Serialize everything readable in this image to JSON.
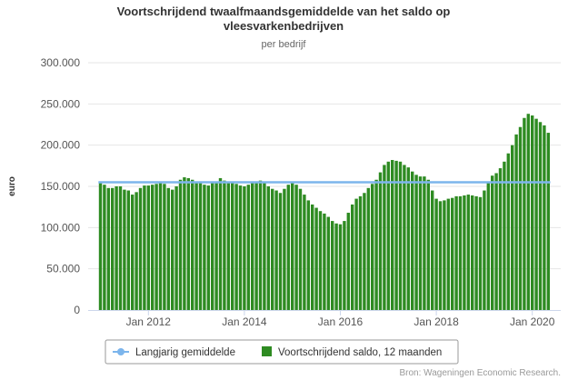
{
  "chart_data": {
    "type": "bar",
    "title": "Voortschrijdend twaalfmaandsgemiddelde van het saldo op vleesvarkenbedrijven",
    "title_lines": [
      "Voortschrijdend twaalfmaandsgemiddelde van het saldo op",
      "vleesvarkenbedrijven"
    ],
    "subtitle": "per bedrijf",
    "ylabel": "euro",
    "xlabel": "",
    "ylim": [
      0,
      300000
    ],
    "yticks": [
      0,
      50000,
      100000,
      150000,
      200000,
      250000,
      300000
    ],
    "ytick_labels": [
      "0",
      "50.000",
      "100.000",
      "150.000",
      "200.000",
      "250.000",
      "300.000"
    ],
    "x_start": "2011-01",
    "x_tick_labels": [
      "Jan 2012",
      "Jan 2014",
      "Jan 2016",
      "Jan 2018",
      "Jan 2020"
    ],
    "x_tick_months": [
      "2012-01",
      "2014-01",
      "2016-01",
      "2018-01",
      "2020-01"
    ],
    "grid": true,
    "legend_placement": "bottom-center",
    "reference_line": {
      "name": "Langjarig gemiddelde",
      "value": 155000,
      "color": "#7cb5ec"
    },
    "series": [
      {
        "name": "Voortschrijdend saldo, 12 maanden",
        "color": "#2e8b22",
        "values": [
          155000,
          152000,
          148000,
          148000,
          150000,
          150000,
          146000,
          145000,
          140000,
          143000,
          148000,
          151000,
          151000,
          152000,
          153000,
          154000,
          153000,
          148000,
          146000,
          150000,
          158000,
          161000,
          160000,
          158000,
          156000,
          155000,
          152000,
          151000,
          154000,
          156000,
          160000,
          157000,
          155000,
          154000,
          153000,
          151000,
          150000,
          152000,
          154000,
          156000,
          157000,
          155000,
          150000,
          147000,
          145000,
          142000,
          147000,
          152000,
          155000,
          152000,
          147000,
          140000,
          133000,
          128000,
          124000,
          120000,
          117000,
          113000,
          108000,
          105000,
          104000,
          108000,
          118000,
          128000,
          135000,
          138000,
          142000,
          148000,
          153000,
          158000,
          167000,
          176000,
          180000,
          182000,
          181000,
          180000,
          176000,
          173000,
          168000,
          164000,
          162000,
          162000,
          158000,
          145000,
          135000,
          132000,
          133000,
          135000,
          136000,
          138000,
          138000,
          139000,
          140000,
          139000,
          138000,
          137000,
          145000,
          155000,
          163000,
          166000,
          172000,
          180000,
          190000,
          200000,
          213000,
          222000,
          233000,
          238000,
          236000,
          232000,
          228000,
          224000,
          215000
        ]
      }
    ]
  },
  "legend": {
    "items": [
      {
        "label": "Langjarig gemiddelde",
        "color": "#7cb5ec",
        "icon": "line-marker-icon"
      },
      {
        "label": "Voortschrijdend saldo, 12 maanden",
        "color": "#2e8b22",
        "icon": "square-icon"
      }
    ]
  },
  "credits": "Bron: Wageningen Economic Research."
}
